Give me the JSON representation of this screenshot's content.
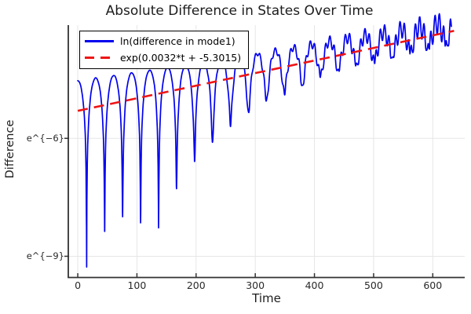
{
  "title": "Absolute Difference in States Over Time",
  "axes": {
    "xlabel": "Time",
    "ylabel": "Difference",
    "x_ticks": [
      "0",
      "100",
      "200",
      "300",
      "400",
      "500",
      "600"
    ],
    "y_ticks": [
      "e^{−6}",
      "e^{−9}"
    ]
  },
  "legend": {
    "entries": [
      {
        "label": "ln(difference in mode1)",
        "color": "#0000ee",
        "style": "solid"
      },
      {
        "label": "exp(0.0032*t + -5.3015)",
        "color": "#ee1515",
        "style": "dashed"
      }
    ]
  },
  "colors": {
    "series_blue": "#0000ee",
    "series_red": "#ee1515",
    "grid": "#e6e6e6",
    "spine": "#333333",
    "text": "#1c1c1c"
  },
  "chart_data": {
    "type": "line",
    "title": "Absolute Difference in States Over Time",
    "xlabel": "Time",
    "ylabel": "Difference",
    "x_tick_values": [
      0,
      100,
      200,
      300,
      400,
      500,
      600
    ],
    "y_tick_ln_values": [
      -6,
      -9
    ],
    "y_tick_labels": [
      "e^{−6}",
      "e^{−9}"
    ],
    "xlim": [
      -16,
      654
    ],
    "ylim_ln": [
      -9.54,
      -3.12
    ],
    "y_scale": "ln",
    "grid": true,
    "legend_position": "top-left",
    "series": [
      {
        "name": "ln(difference in mode1)",
        "color": "#0000ee",
        "line_style": "solid",
        "line_width": 1.7,
        "model": {
          "kind": "ln_abs_decaying_oscillation",
          "t_range": [
            0,
            632
          ],
          "envelope_intercept_ln": -4.53,
          "envelope_slope": 0.00215,
          "first_zero_t": 15,
          "zero_spacing": 30.4,
          "ripple": {
            "base": 0.005,
            "gain": 0.42,
            "onset": 120,
            "scale": 512,
            "period": 7.4,
            "phase": 1.0
          },
          "dip_ln_values": [
            [
              15,
              -9.45
            ],
            [
              45.4,
              -8.4
            ],
            [
              75.8,
              -8.0
            ],
            [
              106.2,
              -8.15
            ],
            [
              136.6,
              -8.3
            ],
            [
              167,
              -7.3
            ],
            [
              197.4,
              -6.6
            ],
            [
              227.8,
              -6.1
            ],
            [
              258.2,
              -5.7
            ],
            [
              288.6,
              -5.35
            ],
            [
              319,
              -5.05
            ],
            [
              349.4,
              -4.9
            ],
            [
              379.8,
              -4.65
            ],
            [
              410.2,
              -4.45
            ],
            [
              440.6,
              -4.3
            ],
            [
              471,
              -4.15
            ],
            [
              501.4,
              -4.1
            ],
            [
              531.8,
              -3.95
            ],
            [
              562.2,
              -3.85
            ],
            [
              592.6,
              -3.75
            ],
            [
              623,
              -3.65
            ]
          ]
        }
      },
      {
        "name": "exp(0.0032*t + -5.3015)",
        "color": "#ee1515",
        "line_style": "dashed",
        "line_width": 2.6,
        "slope": 0.0032,
        "intercept_ln": -5.3015,
        "t_range": [
          0,
          636
        ]
      }
    ]
  }
}
